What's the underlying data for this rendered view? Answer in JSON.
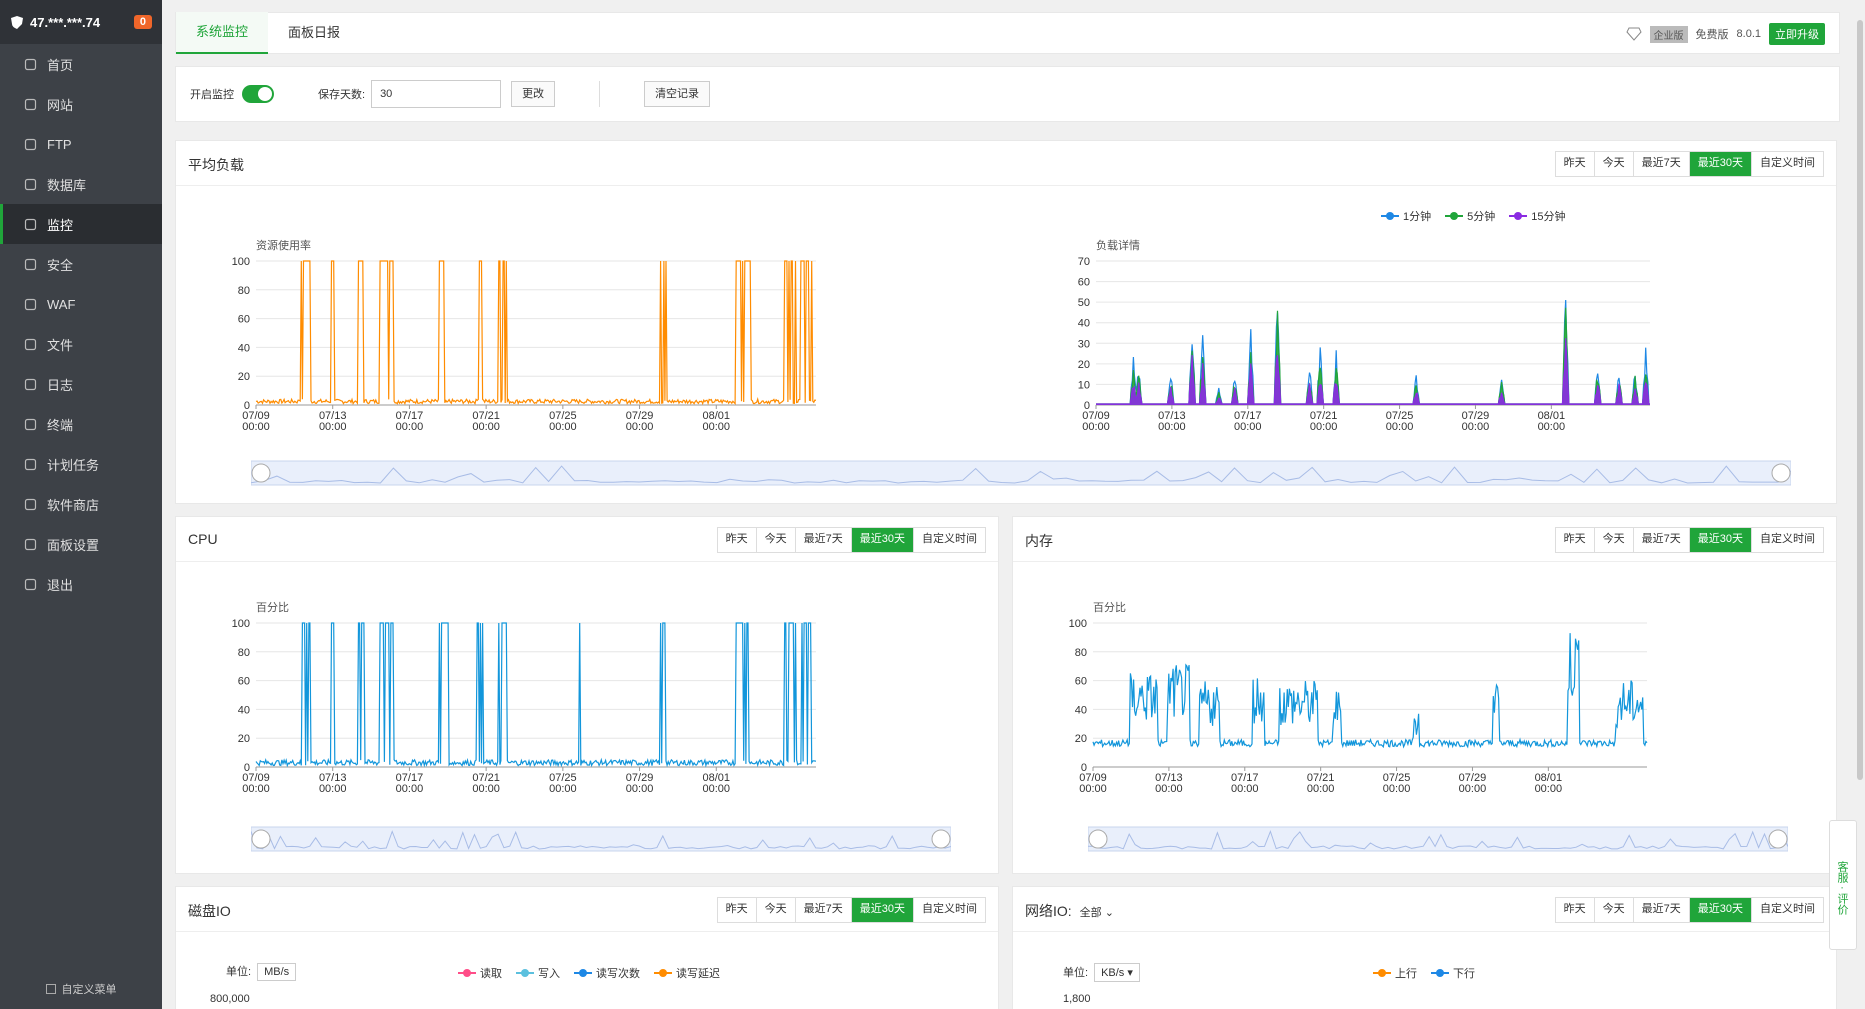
{
  "sidebar": {
    "ip": "47.***.***.74",
    "badge": "0",
    "items": [
      {
        "label": "首页",
        "icon": "home-icon"
      },
      {
        "label": "网站",
        "icon": "globe-icon"
      },
      {
        "label": "FTP",
        "icon": "ftp-icon"
      },
      {
        "label": "数据库",
        "icon": "database-icon"
      },
      {
        "label": "监控",
        "icon": "monitor-icon"
      },
      {
        "label": "安全",
        "icon": "shield-icon"
      },
      {
        "label": "WAF",
        "icon": "waf-icon"
      },
      {
        "label": "文件",
        "icon": "folder-icon"
      },
      {
        "label": "日志",
        "icon": "log-icon"
      },
      {
        "label": "终端",
        "icon": "terminal-icon"
      },
      {
        "label": "计划任务",
        "icon": "calendar-icon"
      },
      {
        "label": "软件商店",
        "icon": "apps-icon"
      },
      {
        "label": "面板设置",
        "icon": "gear-icon"
      },
      {
        "label": "退出",
        "icon": "logout-icon"
      }
    ],
    "active_index": 4,
    "custom_menu": "自定义菜单"
  },
  "tabs": [
    {
      "label": "系统监控"
    },
    {
      "label": "面板日报"
    }
  ],
  "header": {
    "enterprise": "企业版",
    "free": "免费版",
    "version": "8.0.1",
    "upgrade": "立即升级"
  },
  "controls": {
    "enable_label": "开启监控",
    "days_label": "保存天数:",
    "days_value": "30",
    "change_btn": "更改",
    "clear_btn": "清空记录"
  },
  "range_buttons": [
    "昨天",
    "今天",
    "最近7天",
    "最近30天",
    "自定义时间"
  ],
  "colors": {
    "accent": "#20a53a",
    "load": "#ff8c00",
    "cpu": "#1296db",
    "mem": "#1296db",
    "m1": "#1e88e5",
    "m5": "#20a53a",
    "m15": "#8a2be2"
  },
  "panels": {
    "load": {
      "title": "平均负载",
      "left_ylabel": "资源使用率",
      "right_ylabel": "负载详情",
      "legend": [
        "1分钟",
        "5分钟",
        "15分钟"
      ]
    },
    "cpu": {
      "title": "CPU",
      "ylabel": "百分比"
    },
    "mem": {
      "title": "内存",
      "ylabel": "百分比"
    },
    "disk": {
      "title": "磁盘IO",
      "unit_label": "单位:",
      "unit_value": "MB/s",
      "legend": [
        "读取",
        "写入",
        "读写次数",
        "读写延迟"
      ],
      "ytop": "800,000"
    },
    "net": {
      "title": "网络IO:",
      "select": "全部",
      "unit_label": "单位:",
      "unit_value": "KB/s",
      "legend": [
        "上行",
        "下行"
      ],
      "ytop": "1,800"
    }
  },
  "chart_data": [
    {
      "type": "line",
      "name": "load-usage",
      "ylabel": "资源使用率",
      "ylim": [
        0,
        100
      ],
      "yticks": [
        0,
        20,
        40,
        60,
        80,
        100
      ],
      "xticks": [
        "07/09 00:00",
        "07/13 00:00",
        "07/17 00:00",
        "07/21 00:00",
        "07/25 00:00",
        "07/29 00:00",
        "08/01 00:00"
      ]
    },
    {
      "type": "line",
      "name": "load-detail",
      "ylabel": "负载详情",
      "ylim": [
        0,
        70
      ],
      "yticks": [
        0,
        10,
        20,
        30,
        40,
        50,
        60,
        70
      ],
      "xticks": [
        "07/09 00:00",
        "07/13 00:00",
        "07/17 00:00",
        "07/21 00:00",
        "07/25 00:00",
        "07/29 00:00",
        "08/01 00:00"
      ],
      "series": [
        {
          "name": "1分钟"
        },
        {
          "name": "5分钟"
        },
        {
          "name": "15分钟"
        }
      ]
    },
    {
      "type": "line",
      "name": "cpu",
      "ylabel": "百分比",
      "ylim": [
        0,
        100
      ],
      "yticks": [
        0,
        20,
        40,
        60,
        80,
        100
      ],
      "xticks": [
        "07/09 00:00",
        "07/13 00:00",
        "07/17 00:00",
        "07/21 00:00",
        "07/25 00:00",
        "07/29 00:00",
        "08/01 00:00"
      ]
    },
    {
      "type": "line",
      "name": "memory",
      "ylabel": "百分比",
      "ylim": [
        0,
        100
      ],
      "yticks": [
        0,
        20,
        40,
        60,
        80,
        100
      ],
      "xticks": [
        "07/09 00:00",
        "07/13 00:00",
        "07/17 00:00",
        "07/21 00:00",
        "07/25 00:00",
        "07/29 00:00",
        "08/01 00:00"
      ]
    }
  ]
}
